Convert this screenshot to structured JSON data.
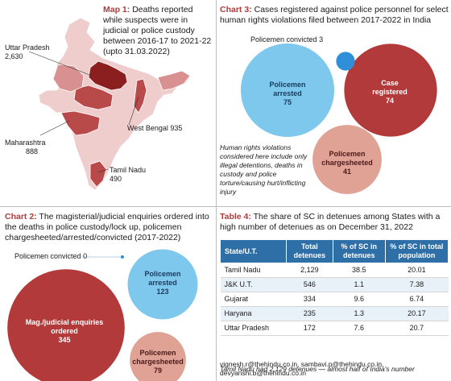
{
  "map1": {
    "heading_bold": "Map 1:",
    "heading_text": "Deaths reported while suspects were in judicial or police custody between 2016-17 to 2021-22 (upto 31.03.2022)",
    "labels": [
      {
        "name": "Uttar Pradesh",
        "value": "2,630"
      },
      {
        "name": "West Bengal",
        "value": "935"
      },
      {
        "name": "Maharashtra",
        "value": "888"
      },
      {
        "name": "Tamil Nadu",
        "value": "490"
      }
    ],
    "colors": {
      "high": "#8b1f1f",
      "mid": "#b84a4a",
      "low": "#d99090",
      "lowest": "#f0cdcd"
    }
  },
  "chart_data": [
    {
      "type": "bubble",
      "heading_bold": "Chart 3:",
      "heading_text": "Cases registered against police personnel for select human rights violations filed between 2017-2022 in India",
      "items": [
        {
          "label": "Policemen arrested",
          "value": 75,
          "color": "#7ec8ee"
        },
        {
          "label": "Case registered",
          "value": 74,
          "color": "#b23a3a"
        },
        {
          "label": "Policemen chargesheeted",
          "value": 41,
          "color": "#e0a294"
        },
        {
          "label": "Policemen convicted",
          "value": 3,
          "color": "#2f8fd8"
        }
      ],
      "note": "Human rights violations considered here include only illegal detentions, deaths in custody and police torture/causing hurt/inflicting injury"
    },
    {
      "type": "bubble",
      "heading_bold": "Chart 2:",
      "heading_text": "The magisterial/judicial enquiries ordered into the deaths in police custody/lock up, policemen chargesheeted/arrested/convicted (2017-2022)",
      "items": [
        {
          "label": "Mag./judicial enquiries ordered",
          "value": 345,
          "color": "#b23a3a"
        },
        {
          "label": "Policemen arrested",
          "value": 123,
          "color": "#7ec8ee"
        },
        {
          "label": "Policemen chargesheeted",
          "value": 79,
          "color": "#e0a294"
        },
        {
          "label": "Policemen convicted",
          "value": 0,
          "color": "#2f8fd8"
        }
      ]
    },
    {
      "type": "table",
      "heading_bold": "Table 4:",
      "heading_text": "The share of SC in detenues among States with a high number of detenues as on December 31, 2022",
      "columns": [
        "State/U.T.",
        "Total detenues",
        "% of SC in detenues",
        "% of SC in total population"
      ],
      "rows": [
        [
          "Tamil Nadu",
          "2,129",
          "38.5",
          "20.01"
        ],
        [
          "J&K U.T.",
          "546",
          "1.1",
          "7.38"
        ],
        [
          "Gujarat",
          "334",
          "9.6",
          "6.74"
        ],
        [
          "Haryana",
          "235",
          "1.3",
          "20.17"
        ],
        [
          "Uttar Pradesh",
          "172",
          "7.6",
          "20.7"
        ]
      ],
      "note": "Tamil Nadu had 2,129 detenues — almost half of India's number"
    }
  ],
  "credits": [
    "vignesh.r@thehindu.co.in, sambavi.p@thehindu.co.in,",
    "devyanshi.b@thehindu.co.in"
  ]
}
